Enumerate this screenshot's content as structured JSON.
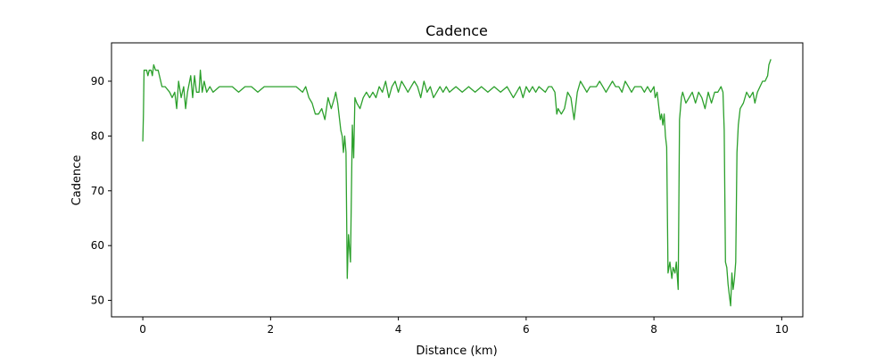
{
  "chart_data": {
    "type": "line",
    "title": "Cadence",
    "xlabel": "Distance (km)",
    "ylabel": "Cadence",
    "xlim": [
      -0.49,
      10.33
    ],
    "ylim": [
      47,
      97
    ],
    "xticks": [
      0,
      2,
      4,
      6,
      8,
      10
    ],
    "yticks": [
      50,
      60,
      70,
      80,
      90
    ],
    "grid": false,
    "series": [
      {
        "color": "#2ca02c",
        "points": [
          [
            0.0,
            79
          ],
          [
            0.01,
            84
          ],
          [
            0.02,
            92
          ],
          [
            0.06,
            92
          ],
          [
            0.08,
            91
          ],
          [
            0.1,
            92
          ],
          [
            0.13,
            92
          ],
          [
            0.15,
            91
          ],
          [
            0.17,
            93
          ],
          [
            0.2,
            92
          ],
          [
            0.24,
            92
          ],
          [
            0.3,
            89
          ],
          [
            0.35,
            89
          ],
          [
            0.42,
            88
          ],
          [
            0.46,
            87
          ],
          [
            0.5,
            88
          ],
          [
            0.53,
            85
          ],
          [
            0.56,
            90
          ],
          [
            0.6,
            87
          ],
          [
            0.64,
            89
          ],
          [
            0.67,
            85
          ],
          [
            0.7,
            88
          ],
          [
            0.75,
            91
          ],
          [
            0.78,
            87
          ],
          [
            0.81,
            91
          ],
          [
            0.84,
            88
          ],
          [
            0.88,
            88
          ],
          [
            0.9,
            92
          ],
          [
            0.93,
            88
          ],
          [
            0.96,
            90
          ],
          [
            1.0,
            88
          ],
          [
            1.05,
            89
          ],
          [
            1.1,
            88
          ],
          [
            1.2,
            89
          ],
          [
            1.3,
            89
          ],
          [
            1.4,
            89
          ],
          [
            1.5,
            88
          ],
          [
            1.6,
            89
          ],
          [
            1.7,
            89
          ],
          [
            1.8,
            88
          ],
          [
            1.9,
            89
          ],
          [
            2.0,
            89
          ],
          [
            2.1,
            89
          ],
          [
            2.2,
            89
          ],
          [
            2.3,
            89
          ],
          [
            2.4,
            89
          ],
          [
            2.5,
            88
          ],
          [
            2.55,
            89
          ],
          [
            2.6,
            87
          ],
          [
            2.65,
            86
          ],
          [
            2.7,
            84
          ],
          [
            2.75,
            84
          ],
          [
            2.8,
            85
          ],
          [
            2.85,
            83
          ],
          [
            2.9,
            87
          ],
          [
            2.95,
            85
          ],
          [
            3.0,
            87
          ],
          [
            3.02,
            88
          ],
          [
            3.05,
            86
          ],
          [
            3.1,
            81
          ],
          [
            3.12,
            80
          ],
          [
            3.14,
            77
          ],
          [
            3.16,
            80
          ],
          [
            3.18,
            77
          ],
          [
            3.2,
            54
          ],
          [
            3.22,
            62
          ],
          [
            3.25,
            57
          ],
          [
            3.28,
            82
          ],
          [
            3.3,
            76
          ],
          [
            3.32,
            87
          ],
          [
            3.35,
            86
          ],
          [
            3.4,
            85
          ],
          [
            3.45,
            87
          ],
          [
            3.5,
            88
          ],
          [
            3.55,
            87
          ],
          [
            3.6,
            88
          ],
          [
            3.65,
            87
          ],
          [
            3.7,
            89
          ],
          [
            3.75,
            88
          ],
          [
            3.8,
            90
          ],
          [
            3.85,
            87
          ],
          [
            3.9,
            89
          ],
          [
            3.95,
            90
          ],
          [
            4.0,
            88
          ],
          [
            4.05,
            90
          ],
          [
            4.1,
            89
          ],
          [
            4.15,
            88
          ],
          [
            4.2,
            89
          ],
          [
            4.25,
            90
          ],
          [
            4.3,
            89
          ],
          [
            4.35,
            87
          ],
          [
            4.4,
            90
          ],
          [
            4.45,
            88
          ],
          [
            4.5,
            89
          ],
          [
            4.55,
            87
          ],
          [
            4.6,
            88
          ],
          [
            4.65,
            89
          ],
          [
            4.7,
            88
          ],
          [
            4.75,
            89
          ],
          [
            4.8,
            88
          ],
          [
            4.9,
            89
          ],
          [
            5.0,
            88
          ],
          [
            5.1,
            89
          ],
          [
            5.2,
            88
          ],
          [
            5.3,
            89
          ],
          [
            5.4,
            88
          ],
          [
            5.5,
            89
          ],
          [
            5.6,
            88
          ],
          [
            5.7,
            89
          ],
          [
            5.8,
            87
          ],
          [
            5.85,
            88
          ],
          [
            5.9,
            89
          ],
          [
            5.95,
            87
          ],
          [
            6.0,
            89
          ],
          [
            6.05,
            88
          ],
          [
            6.1,
            89
          ],
          [
            6.15,
            88
          ],
          [
            6.2,
            89
          ],
          [
            6.3,
            88
          ],
          [
            6.35,
            89
          ],
          [
            6.4,
            89
          ],
          [
            6.45,
            88
          ],
          [
            6.48,
            84
          ],
          [
            6.5,
            85
          ],
          [
            6.55,
            84
          ],
          [
            6.6,
            85
          ],
          [
            6.65,
            88
          ],
          [
            6.7,
            87
          ],
          [
            6.75,
            83
          ],
          [
            6.8,
            88
          ],
          [
            6.85,
            90
          ],
          [
            6.9,
            89
          ],
          [
            6.95,
            88
          ],
          [
            7.0,
            89
          ],
          [
            7.05,
            89
          ],
          [
            7.1,
            89
          ],
          [
            7.15,
            90
          ],
          [
            7.2,
            89
          ],
          [
            7.25,
            88
          ],
          [
            7.3,
            89
          ],
          [
            7.35,
            90
          ],
          [
            7.4,
            89
          ],
          [
            7.45,
            89
          ],
          [
            7.5,
            88
          ],
          [
            7.55,
            90
          ],
          [
            7.6,
            89
          ],
          [
            7.65,
            88
          ],
          [
            7.7,
            89
          ],
          [
            7.75,
            89
          ],
          [
            7.8,
            89
          ],
          [
            7.85,
            88
          ],
          [
            7.9,
            89
          ],
          [
            7.95,
            88
          ],
          [
            8.0,
            89
          ],
          [
            8.02,
            87
          ],
          [
            8.05,
            88
          ],
          [
            8.08,
            85
          ],
          [
            8.1,
            83
          ],
          [
            8.12,
            84
          ],
          [
            8.14,
            82
          ],
          [
            8.16,
            84
          ],
          [
            8.18,
            80
          ],
          [
            8.2,
            78
          ],
          [
            8.22,
            55
          ],
          [
            8.25,
            57
          ],
          [
            8.28,
            54
          ],
          [
            8.3,
            56
          ],
          [
            8.33,
            55
          ],
          [
            8.35,
            57
          ],
          [
            8.38,
            52
          ],
          [
            8.4,
            83
          ],
          [
            8.43,
            87
          ],
          [
            8.45,
            88
          ],
          [
            8.5,
            86
          ],
          [
            8.55,
            87
          ],
          [
            8.6,
            88
          ],
          [
            8.65,
            86
          ],
          [
            8.7,
            88
          ],
          [
            8.75,
            87
          ],
          [
            8.8,
            85
          ],
          [
            8.85,
            88
          ],
          [
            8.9,
            86
          ],
          [
            8.95,
            88
          ],
          [
            9.0,
            88
          ],
          [
            9.05,
            89
          ],
          [
            9.08,
            88
          ],
          [
            9.1,
            81
          ],
          [
            9.12,
            57
          ],
          [
            9.14,
            56
          ],
          [
            9.16,
            53
          ],
          [
            9.18,
            51
          ],
          [
            9.2,
            49
          ],
          [
            9.22,
            55
          ],
          [
            9.24,
            52
          ],
          [
            9.26,
            54
          ],
          [
            9.28,
            57
          ],
          [
            9.3,
            77
          ],
          [
            9.32,
            82
          ],
          [
            9.35,
            85
          ],
          [
            9.4,
            86
          ],
          [
            9.45,
            88
          ],
          [
            9.5,
            87
          ],
          [
            9.55,
            88
          ],
          [
            9.58,
            86
          ],
          [
            9.62,
            88
          ],
          [
            9.66,
            89
          ],
          [
            9.7,
            90
          ],
          [
            9.74,
            90
          ],
          [
            9.78,
            91
          ],
          [
            9.8,
            93
          ],
          [
            9.83,
            94
          ]
        ]
      }
    ]
  }
}
